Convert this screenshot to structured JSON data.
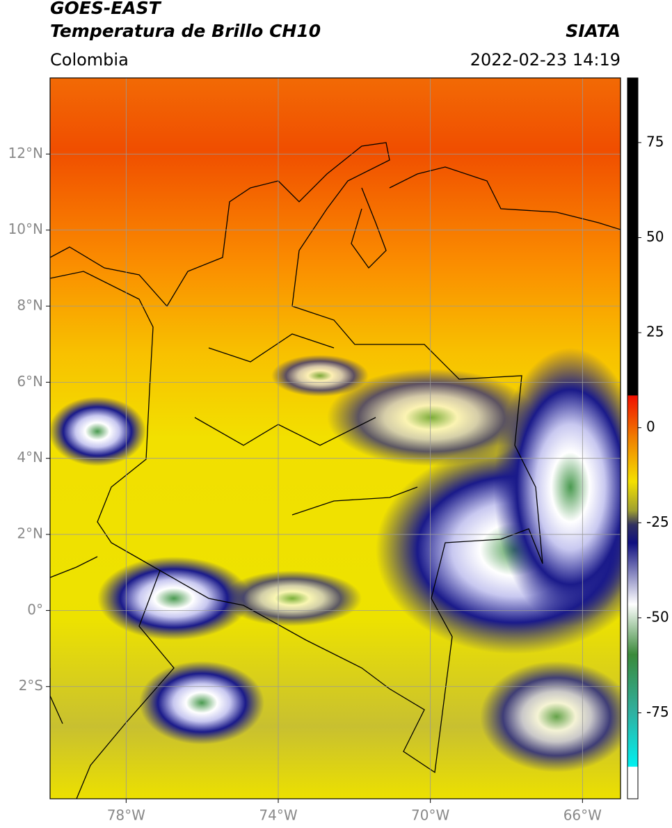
{
  "header": {
    "title": "GOES-EAST",
    "subtitle": "Temperatura de Brillo CH10",
    "region": "Colombia",
    "source": "SIATA",
    "datetime": "2022-02-23 14:19"
  },
  "map": {
    "xlim": [
      -80,
      -65
    ],
    "ylim": [
      -4.95,
      14
    ],
    "xticks": [
      {
        "value": -78,
        "label": "78°W"
      },
      {
        "value": -74,
        "label": "74°W"
      },
      {
        "value": -70,
        "label": "70°W"
      },
      {
        "value": -66,
        "label": "66°W"
      }
    ],
    "yticks": [
      {
        "value": 12,
        "label": "12°N"
      },
      {
        "value": 10,
        "label": "10°N"
      },
      {
        "value": 8,
        "label": "8°N"
      },
      {
        "value": 6,
        "label": "6°N"
      },
      {
        "value": 4,
        "label": "4°N"
      },
      {
        "value": 2,
        "label": "2°N"
      },
      {
        "value": 0,
        "label": "0°"
      },
      {
        "value": -2,
        "label": "2°S"
      }
    ],
    "grid": true
  },
  "colorbar": {
    "lim": [
      -97.6,
      92
    ],
    "ticks": [
      75,
      50,
      25,
      0,
      -25,
      -50,
      -75
    ]
  }
}
